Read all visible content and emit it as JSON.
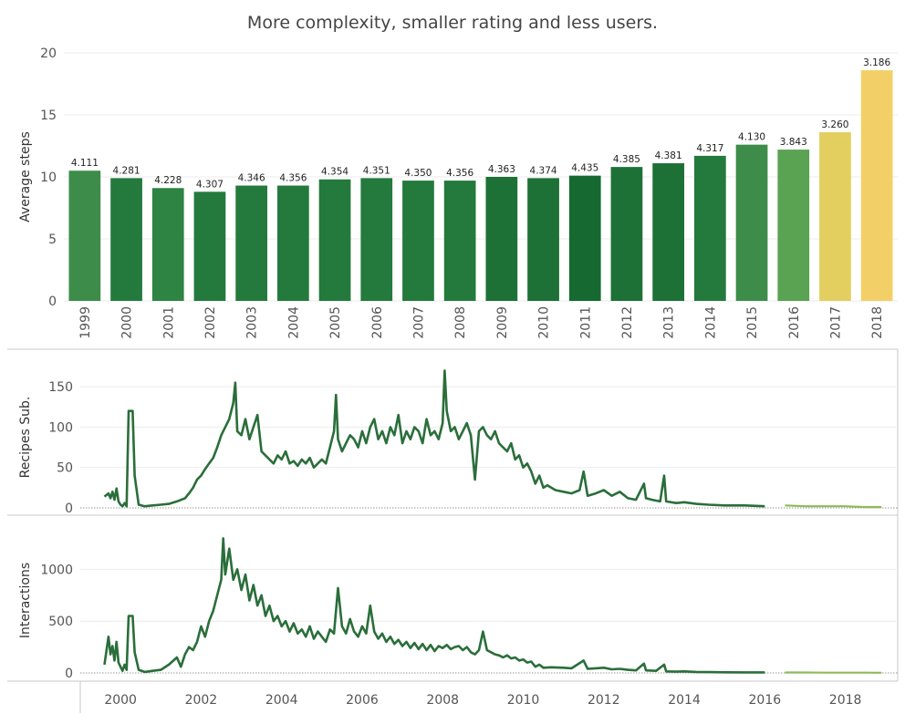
{
  "title": "More complexity, smaller rating and less users.",
  "colors": {
    "line": "#2a6e3a",
    "line_tail": "#8fba5a",
    "zero_line": "#9a9a9a",
    "grid": "#ebebeb"
  },
  "chart_data": [
    {
      "type": "bar",
      "ylabel": "Average steps",
      "ylim": [
        0,
        20
      ],
      "yticks": [
        0,
        5,
        10,
        15,
        20
      ],
      "grid": true,
      "categories": [
        "1999",
        "2000",
        "2001",
        "2002",
        "2003",
        "2004",
        "2005",
        "2006",
        "2007",
        "2008",
        "2009",
        "2010",
        "2011",
        "2012",
        "2013",
        "2014",
        "2015",
        "2016",
        "2017",
        "2018"
      ],
      "values": [
        10.5,
        9.9,
        9.1,
        8.8,
        9.3,
        9.3,
        9.8,
        9.9,
        9.7,
        9.7,
        10.0,
        9.9,
        10.1,
        10.8,
        11.1,
        11.7,
        12.6,
        12.2,
        13.6,
        18.6
      ],
      "labels": [
        "4.111",
        "4.281",
        "4.228",
        "4.307",
        "4.346",
        "4.356",
        "4.354",
        "4.351",
        "4.350",
        "4.356",
        "4.363",
        "4.374",
        "4.435",
        "4.385",
        "4.381",
        "4.317",
        "4.130",
        "3.843",
        "3.260",
        "3.186"
      ],
      "colors": [
        "#3d8c4a",
        "#237a3c",
        "#2e8443",
        "#237a3c",
        "#237a3c",
        "#237a3c",
        "#237a3c",
        "#237a3c",
        "#237a3c",
        "#237a3c",
        "#1d7136",
        "#1d7136",
        "#166a31",
        "#1d7136",
        "#1d7136",
        "#237a3c",
        "#3d8c4a",
        "#5aa352",
        "#e3cf60",
        "#f3d067"
      ]
    },
    {
      "type": "line",
      "ylabel": "Recipes Sub.",
      "ylim": [
        0,
        175
      ],
      "yticks": [
        0,
        50,
        100,
        150
      ],
      "grid": true,
      "xlim": [
        1999.0,
        2019.3
      ],
      "points": [
        [
          1999.6,
          14
        ],
        [
          1999.7,
          18
        ],
        [
          1999.75,
          12
        ],
        [
          1999.8,
          20
        ],
        [
          1999.85,
          10
        ],
        [
          1999.9,
          24
        ],
        [
          1999.95,
          8
        ],
        [
          2000.0,
          4
        ],
        [
          2000.05,
          2
        ],
        [
          2000.1,
          6
        ],
        [
          2000.15,
          2
        ],
        [
          2000.2,
          120
        ],
        [
          2000.3,
          120
        ],
        [
          2000.35,
          40
        ],
        [
          2000.45,
          4
        ],
        [
          2000.6,
          2
        ],
        [
          2000.8,
          3
        ],
        [
          2001.0,
          4
        ],
        [
          2001.2,
          5
        ],
        [
          2001.4,
          8
        ],
        [
          2001.6,
          12
        ],
        [
          2001.7,
          18
        ],
        [
          2001.8,
          25
        ],
        [
          2001.9,
          35
        ],
        [
          2002.0,
          40
        ],
        [
          2002.1,
          48
        ],
        [
          2002.2,
          55
        ],
        [
          2002.3,
          62
        ],
        [
          2002.4,
          75
        ],
        [
          2002.5,
          90
        ],
        [
          2002.6,
          100
        ],
        [
          2002.7,
          110
        ],
        [
          2002.8,
          130
        ],
        [
          2002.85,
          155
        ],
        [
          2002.9,
          95
        ],
        [
          2003.0,
          90
        ],
        [
          2003.1,
          110
        ],
        [
          2003.2,
          85
        ],
        [
          2003.3,
          100
        ],
        [
          2003.4,
          115
        ],
        [
          2003.5,
          70
        ],
        [
          2003.6,
          65
        ],
        [
          2003.7,
          60
        ],
        [
          2003.8,
          55
        ],
        [
          2003.9,
          65
        ],
        [
          2004.0,
          60
        ],
        [
          2004.1,
          70
        ],
        [
          2004.2,
          55
        ],
        [
          2004.3,
          58
        ],
        [
          2004.4,
          52
        ],
        [
          2004.5,
          60
        ],
        [
          2004.6,
          55
        ],
        [
          2004.7,
          62
        ],
        [
          2004.8,
          50
        ],
        [
          2004.9,
          55
        ],
        [
          2005.0,
          60
        ],
        [
          2005.1,
          55
        ],
        [
          2005.2,
          75
        ],
        [
          2005.3,
          95
        ],
        [
          2005.35,
          140
        ],
        [
          2005.4,
          85
        ],
        [
          2005.5,
          70
        ],
        [
          2005.6,
          80
        ],
        [
          2005.7,
          90
        ],
        [
          2005.8,
          85
        ],
        [
          2005.9,
          75
        ],
        [
          2006.0,
          95
        ],
        [
          2006.1,
          80
        ],
        [
          2006.2,
          100
        ],
        [
          2006.3,
          110
        ],
        [
          2006.4,
          85
        ],
        [
          2006.5,
          95
        ],
        [
          2006.6,
          80
        ],
        [
          2006.7,
          100
        ],
        [
          2006.8,
          90
        ],
        [
          2006.9,
          115
        ],
        [
          2007.0,
          80
        ],
        [
          2007.1,
          95
        ],
        [
          2007.2,
          85
        ],
        [
          2007.3,
          100
        ],
        [
          2007.4,
          95
        ],
        [
          2007.5,
          80
        ],
        [
          2007.6,
          110
        ],
        [
          2007.7,
          90
        ],
        [
          2007.8,
          95
        ],
        [
          2007.9,
          85
        ],
        [
          2008.0,
          105
        ],
        [
          2008.05,
          170
        ],
        [
          2008.1,
          120
        ],
        [
          2008.2,
          95
        ],
        [
          2008.3,
          100
        ],
        [
          2008.4,
          85
        ],
        [
          2008.5,
          95
        ],
        [
          2008.6,
          105
        ],
        [
          2008.7,
          90
        ],
        [
          2008.8,
          35
        ],
        [
          2008.9,
          95
        ],
        [
          2009.0,
          100
        ],
        [
          2009.1,
          90
        ],
        [
          2009.2,
          85
        ],
        [
          2009.3,
          95
        ],
        [
          2009.4,
          80
        ],
        [
          2009.5,
          75
        ],
        [
          2009.6,
          70
        ],
        [
          2009.7,
          80
        ],
        [
          2009.8,
          60
        ],
        [
          2009.9,
          65
        ],
        [
          2010.0,
          50
        ],
        [
          2010.1,
          55
        ],
        [
          2010.2,
          45
        ],
        [
          2010.3,
          30
        ],
        [
          2010.4,
          40
        ],
        [
          2010.5,
          25
        ],
        [
          2010.6,
          28
        ],
        [
          2010.8,
          22
        ],
        [
          2011.0,
          20
        ],
        [
          2011.2,
          18
        ],
        [
          2011.4,
          22
        ],
        [
          2011.5,
          45
        ],
        [
          2011.6,
          15
        ],
        [
          2011.8,
          18
        ],
        [
          2012.0,
          22
        ],
        [
          2012.2,
          15
        ],
        [
          2012.4,
          20
        ],
        [
          2012.6,
          12
        ],
        [
          2012.8,
          10
        ],
        [
          2013.0,
          30
        ],
        [
          2013.05,
          12
        ],
        [
          2013.2,
          10
        ],
        [
          2013.4,
          8
        ],
        [
          2013.5,
          40
        ],
        [
          2013.55,
          8
        ],
        [
          2013.8,
          6
        ],
        [
          2014.0,
          7
        ],
        [
          2014.3,
          5
        ],
        [
          2014.6,
          4
        ],
        [
          2015.0,
          3
        ],
        [
          2015.5,
          3
        ],
        [
          2016.0,
          2
        ],
        [
          2016.5,
          3
        ],
        [
          2017.0,
          2
        ],
        [
          2017.5,
          2
        ],
        [
          2018.0,
          2
        ],
        [
          2018.5,
          1
        ],
        [
          2018.9,
          1
        ]
      ]
    },
    {
      "type": "line",
      "ylabel": "Interactions",
      "ylim": [
        0,
        1400
      ],
      "yticks": [
        0,
        500,
        1000
      ],
      "grid": true,
      "xlim": [
        1999.0,
        2019.3
      ],
      "xticks": [
        2000,
        2002,
        2004,
        2006,
        2008,
        2010,
        2012,
        2014,
        2016,
        2018
      ],
      "points": [
        [
          1999.6,
          80
        ],
        [
          1999.7,
          350
        ],
        [
          1999.75,
          180
        ],
        [
          1999.8,
          260
        ],
        [
          1999.85,
          120
        ],
        [
          1999.9,
          300
        ],
        [
          1999.95,
          100
        ],
        [
          2000.0,
          60
        ],
        [
          2000.05,
          20
        ],
        [
          2000.1,
          80
        ],
        [
          2000.15,
          30
        ],
        [
          2000.2,
          550
        ],
        [
          2000.3,
          550
        ],
        [
          2000.35,
          200
        ],
        [
          2000.45,
          30
        ],
        [
          2000.6,
          10
        ],
        [
          2000.8,
          20
        ],
        [
          2001.0,
          30
        ],
        [
          2001.2,
          80
        ],
        [
          2001.4,
          150
        ],
        [
          2001.5,
          60
        ],
        [
          2001.6,
          180
        ],
        [
          2001.7,
          250
        ],
        [
          2001.8,
          220
        ],
        [
          2001.9,
          300
        ],
        [
          2002.0,
          450
        ],
        [
          2002.1,
          350
        ],
        [
          2002.2,
          500
        ],
        [
          2002.3,
          600
        ],
        [
          2002.4,
          750
        ],
        [
          2002.5,
          900
        ],
        [
          2002.55,
          1300
        ],
        [
          2002.6,
          950
        ],
        [
          2002.7,
          1200
        ],
        [
          2002.8,
          900
        ],
        [
          2002.9,
          1000
        ],
        [
          2003.0,
          800
        ],
        [
          2003.1,
          950
        ],
        [
          2003.2,
          700
        ],
        [
          2003.3,
          850
        ],
        [
          2003.4,
          650
        ],
        [
          2003.5,
          750
        ],
        [
          2003.6,
          550
        ],
        [
          2003.7,
          650
        ],
        [
          2003.8,
          500
        ],
        [
          2003.9,
          550
        ],
        [
          2004.0,
          450
        ],
        [
          2004.1,
          500
        ],
        [
          2004.2,
          400
        ],
        [
          2004.3,
          480
        ],
        [
          2004.4,
          380
        ],
        [
          2004.5,
          420
        ],
        [
          2004.6,
          350
        ],
        [
          2004.7,
          450
        ],
        [
          2004.8,
          330
        ],
        [
          2004.9,
          400
        ],
        [
          2005.0,
          350
        ],
        [
          2005.1,
          300
        ],
        [
          2005.2,
          420
        ],
        [
          2005.3,
          380
        ],
        [
          2005.4,
          820
        ],
        [
          2005.5,
          450
        ],
        [
          2005.6,
          380
        ],
        [
          2005.7,
          520
        ],
        [
          2005.8,
          400
        ],
        [
          2005.9,
          350
        ],
        [
          2006.0,
          450
        ],
        [
          2006.1,
          380
        ],
        [
          2006.2,
          650
        ],
        [
          2006.3,
          400
        ],
        [
          2006.4,
          330
        ],
        [
          2006.5,
          380
        ],
        [
          2006.6,
          300
        ],
        [
          2006.7,
          350
        ],
        [
          2006.8,
          280
        ],
        [
          2006.9,
          320
        ],
        [
          2007.0,
          260
        ],
        [
          2007.1,
          300
        ],
        [
          2007.2,
          240
        ],
        [
          2007.3,
          290
        ],
        [
          2007.4,
          230
        ],
        [
          2007.5,
          280
        ],
        [
          2007.6,
          220
        ],
        [
          2007.7,
          270
        ],
        [
          2007.8,
          210
        ],
        [
          2007.9,
          260
        ],
        [
          2008.0,
          240
        ],
        [
          2008.1,
          270
        ],
        [
          2008.2,
          230
        ],
        [
          2008.3,
          250
        ],
        [
          2008.4,
          260
        ],
        [
          2008.5,
          220
        ],
        [
          2008.6,
          250
        ],
        [
          2008.7,
          200
        ],
        [
          2008.8,
          180
        ],
        [
          2008.9,
          220
        ],
        [
          2009.0,
          400
        ],
        [
          2009.1,
          220
        ],
        [
          2009.2,
          200
        ],
        [
          2009.3,
          180
        ],
        [
          2009.4,
          170
        ],
        [
          2009.5,
          150
        ],
        [
          2009.6,
          170
        ],
        [
          2009.7,
          140
        ],
        [
          2009.8,
          150
        ],
        [
          2009.9,
          120
        ],
        [
          2010.0,
          130
        ],
        [
          2010.1,
          100
        ],
        [
          2010.2,
          110
        ],
        [
          2010.3,
          60
        ],
        [
          2010.4,
          80
        ],
        [
          2010.5,
          50
        ],
        [
          2010.7,
          55
        ],
        [
          2011.0,
          50
        ],
        [
          2011.2,
          45
        ],
        [
          2011.5,
          120
        ],
        [
          2011.6,
          40
        ],
        [
          2011.8,
          45
        ],
        [
          2012.0,
          50
        ],
        [
          2012.2,
          35
        ],
        [
          2012.4,
          40
        ],
        [
          2012.6,
          30
        ],
        [
          2012.8,
          25
        ],
        [
          2013.0,
          90
        ],
        [
          2013.05,
          25
        ],
        [
          2013.3,
          20
        ],
        [
          2013.5,
          80
        ],
        [
          2013.55,
          15
        ],
        [
          2013.8,
          12
        ],
        [
          2014.0,
          15
        ],
        [
          2014.3,
          10
        ],
        [
          2014.6,
          8
        ],
        [
          2015.0,
          6
        ],
        [
          2015.5,
          5
        ],
        [
          2016.0,
          5
        ],
        [
          2016.5,
          4
        ],
        [
          2017.0,
          4
        ],
        [
          2017.5,
          3
        ],
        [
          2018.0,
          3
        ],
        [
          2018.5,
          3
        ],
        [
          2018.9,
          2
        ]
      ]
    }
  ]
}
